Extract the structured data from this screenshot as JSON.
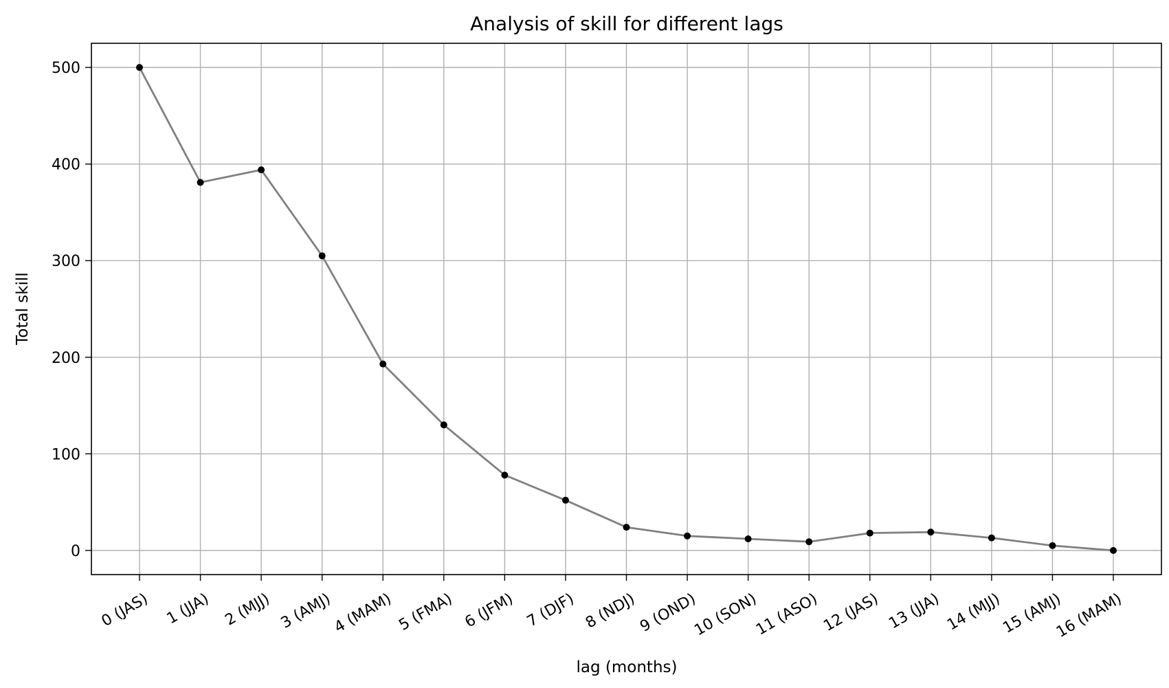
{
  "chart_data": {
    "type": "line",
    "title": "Analysis of skill for different lags",
    "xlabel": "lag (months)",
    "ylabel": "Total skill",
    "categories": [
      "0 (JAS)",
      "1 (JJA)",
      "2 (MJJ)",
      "3 (AMJ)",
      "4 (MAM)",
      "5 (FMA)",
      "6 (JFM)",
      "7 (DJF)",
      "8 (NDJ)",
      "9 (OND)",
      "10 (SON)",
      "11 (ASO)",
      "12 (JAS)",
      "13 (JJA)",
      "14 (MJJ)",
      "15 (AMJ)",
      "16 (MAM)"
    ],
    "values": [
      500,
      381,
      394,
      305,
      193,
      130,
      78,
      52,
      24,
      15,
      12,
      9,
      18,
      19,
      13,
      5,
      0
    ],
    "yticks": [
      0,
      100,
      200,
      300,
      400,
      500
    ],
    "ylim": [
      -25,
      525
    ],
    "grid": true,
    "line_color": "#808080",
    "marker_color": "#000000"
  }
}
